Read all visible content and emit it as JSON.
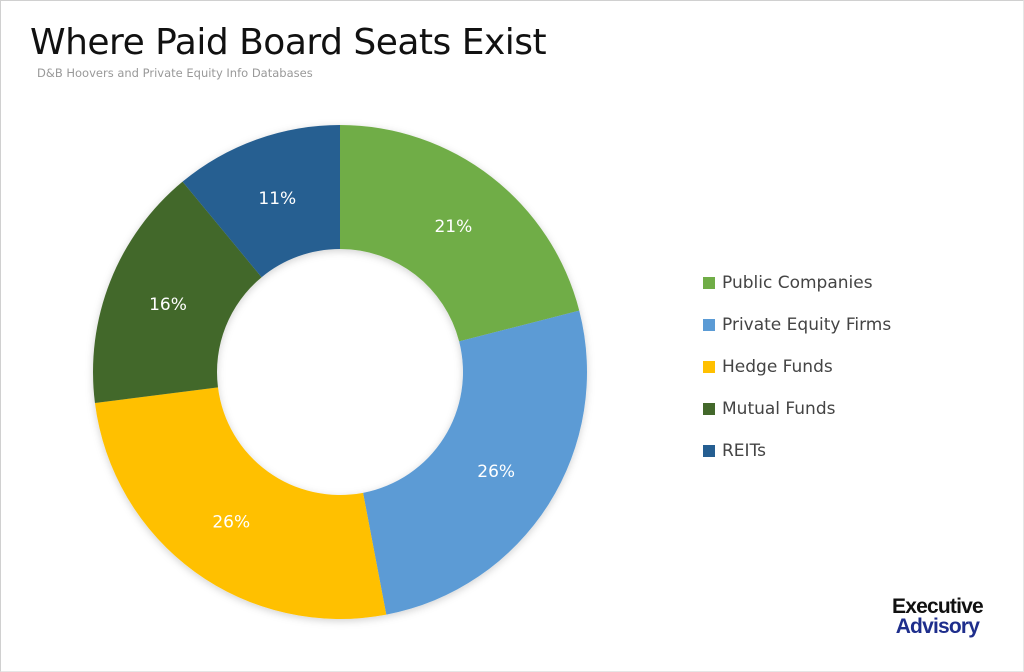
{
  "header": {
    "title": "Where Paid Board Seats Exist",
    "subtitle": "D&B Hoovers and Private Equity Info Databases"
  },
  "legend": [
    {
      "label": "Public Companies",
      "color": "#70ad47"
    },
    {
      "label": "Private Equity Firms",
      "color": "#5b9bd5"
    },
    {
      "label": "Hedge Funds",
      "color": "#ffc000"
    },
    {
      "label": "Mutual Funds",
      "color": "#43682b"
    },
    {
      "label": "REITs",
      "color": "#255e91"
    }
  ],
  "logo": {
    "line1": "Executive",
    "line2": "Advisory"
  },
  "chart_data": {
    "type": "pie",
    "subtype": "donut",
    "title": "Where Paid Board Seats Exist",
    "subtitle": "D&B Hoovers and Private Equity Info Databases",
    "categories": [
      "Public Companies",
      "Private Equity Firms",
      "Hedge Funds",
      "Mutual Funds",
      "REITs"
    ],
    "values": [
      21,
      26,
      26,
      16,
      11
    ],
    "value_labels": [
      "21%",
      "26%",
      "26%",
      "16%",
      "11%"
    ],
    "colors": [
      "#70ad47",
      "#5b9bd5",
      "#ffc000",
      "#43682b",
      "#255e91"
    ],
    "legend_position": "right"
  }
}
